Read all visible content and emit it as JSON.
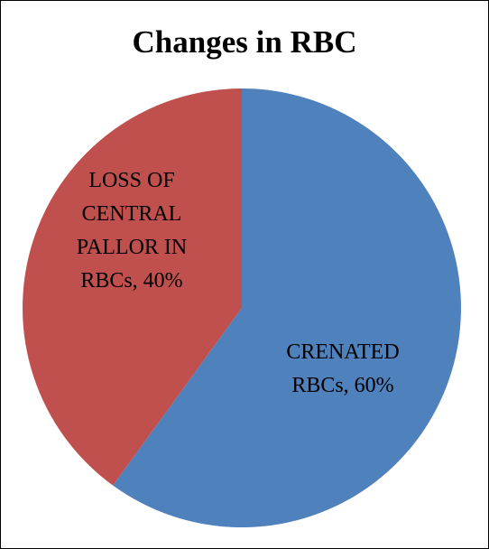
{
  "chart_data": {
    "type": "pie",
    "title": "Changes in RBC",
    "slices": [
      {
        "label_lines": [
          "CRENATED",
          "RBCs, 60%"
        ],
        "value": 60,
        "color": "#4f81bd"
      },
      {
        "label_lines": [
          "LOSS OF",
          "CENTRAL",
          "PALLOR IN",
          "RBCs, 40%"
        ],
        "value": 40,
        "color": "#c0504d"
      }
    ],
    "legend": "none"
  }
}
